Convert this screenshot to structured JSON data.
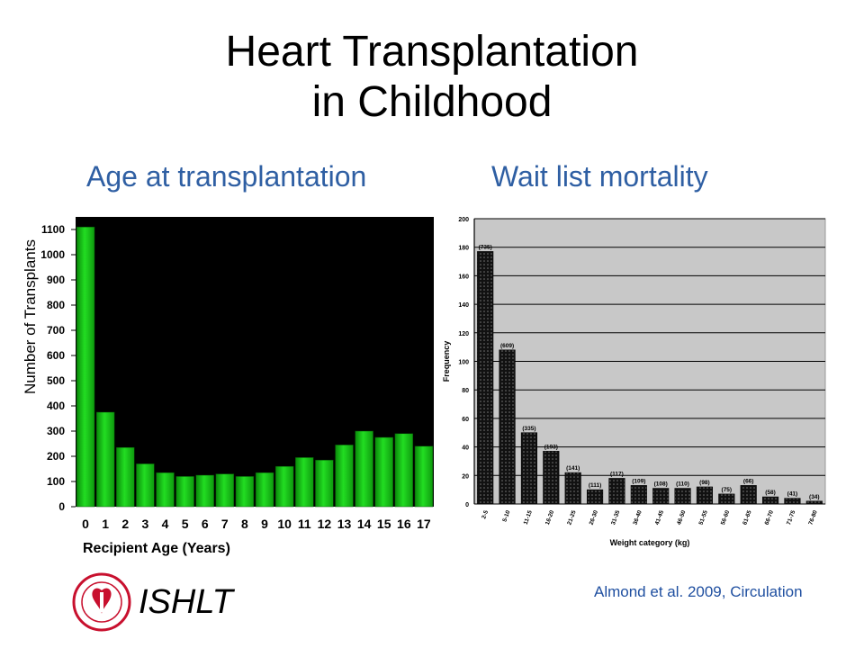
{
  "slide": {
    "title_line1": "Heart Transplantation",
    "title_line2": "in Childhood",
    "org": "ISHLT",
    "citation": "Almond et al. 2009, Circulation",
    "logo_text": "INTERNATIONAL SOCIETY FOR HEART & LUNG TRANSPLANTATION"
  },
  "colors": {
    "title": "#000000",
    "subtitle": "#2f5fa3",
    "citation": "#1f4fa0",
    "bar_green": "#22dd22",
    "chart1_bg": "#000000",
    "chart2_bg": "#c8c8c8",
    "bar_dark": "#111111",
    "logo_red": "#c8102e"
  },
  "chart_data": [
    {
      "type": "bar",
      "subtitle": "Age at transplantation",
      "xlabel": "Recipient Age (Years)",
      "ylabel": "Number of Transplants",
      "categories": [
        "0",
        "1",
        "2",
        "3",
        "4",
        "5",
        "6",
        "7",
        "8",
        "9",
        "10",
        "11",
        "12",
        "13",
        "14",
        "15",
        "16",
        "17"
      ],
      "values": [
        1110,
        375,
        235,
        170,
        135,
        120,
        125,
        130,
        120,
        135,
        160,
        195,
        185,
        245,
        300,
        275,
        290,
        240
      ],
      "ylim": [
        0,
        1150
      ],
      "yticks": [
        0,
        100,
        200,
        300,
        400,
        500,
        600,
        700,
        800,
        900,
        1000,
        1100
      ],
      "grid": false
    },
    {
      "type": "bar",
      "subtitle": "Wait list mortality",
      "xlabel": "Weight category (kg)",
      "ylabel": "Frequency",
      "categories": [
        "2-5",
        "5-10",
        "11-15",
        "16-20",
        "21-25",
        "26-30",
        "31-35",
        "36-40",
        "41-45",
        "46-50",
        "51-55",
        "56-60",
        "61-65",
        "66-70",
        "71-75",
        "76-80"
      ],
      "values": [
        177,
        108,
        50,
        37,
        22,
        10,
        18,
        13,
        11,
        11,
        12,
        7,
        13,
        5,
        4,
        2
      ],
      "bar_labels": [
        "(735)",
        "(609)",
        "(335)",
        "(193)",
        "(141)",
        "(111)",
        "(117)",
        "(109)",
        "(108)",
        "(110)",
        "(98)",
        "(75)",
        "(66)",
        "(58)",
        "(41)",
        "(34)"
      ],
      "ylim": [
        0,
        200
      ],
      "yticks": [
        0,
        20,
        40,
        60,
        80,
        100,
        120,
        140,
        160,
        180,
        200
      ],
      "grid": true
    }
  ]
}
